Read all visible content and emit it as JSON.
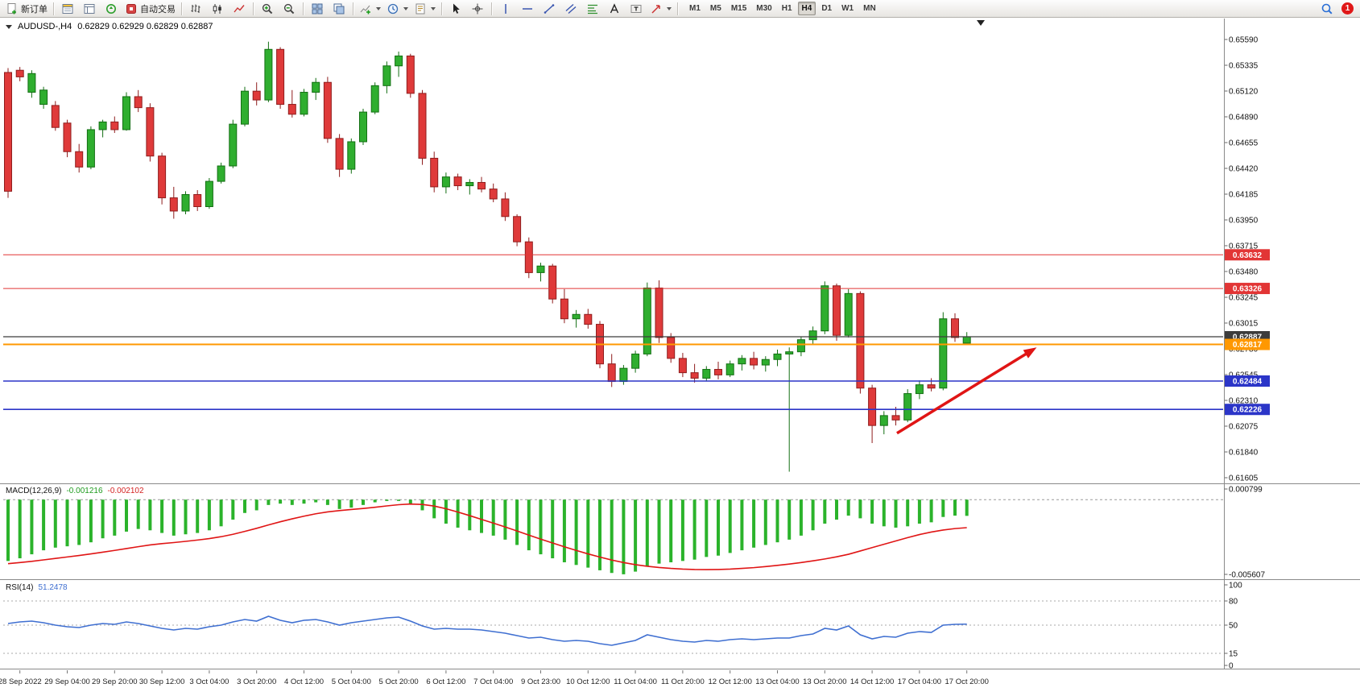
{
  "toolbar": {
    "new_order_label": "新订单",
    "autotrading_label": "自动交易",
    "timeframes": [
      "M1",
      "M5",
      "M15",
      "M30",
      "H1",
      "H4",
      "D1",
      "W1",
      "MN"
    ],
    "active_timeframe": "H4",
    "notification_count": "1"
  },
  "chart": {
    "symbol_period": "AUDUSD-,H4",
    "ohlc": "0.62829 0.62929 0.62829 0.62887"
  },
  "indicators": {
    "macd_label": "MACD(12,26,9)",
    "macd_value": "-0.001216",
    "macd_signal_value": "-0.002102",
    "rsi_label": "RSI(14)",
    "rsi_value": "51.2478"
  },
  "chart_data": {
    "type": "candlestick",
    "symbol": "AUDUSD-",
    "period": "H4",
    "current_bar": {
      "open": 0.62829,
      "high": 0.62929,
      "low": 0.62829,
      "close": 0.62887
    },
    "y_axis_labels": [
      "0.65590",
      "0.65335",
      "0.65120",
      "0.64890",
      "0.64655",
      "0.64420",
      "0.64185",
      "0.63950",
      "0.63715",
      "0.63480",
      "0.63245",
      "0.63015",
      "0.62780",
      "0.62545",
      "0.62310",
      "0.62075",
      "0.61840",
      "0.61605"
    ],
    "x_axis_labels": [
      "28 Sep 2022",
      "29 Sep 04:00",
      "29 Sep 20:00",
      "30 Sep 12:00",
      "3 Oct 04:00",
      "3 Oct 20:00",
      "4 Oct 12:00",
      "5 Oct 04:00",
      "5 Oct 20:00",
      "6 Oct 12:00",
      "7 Oct 04:00",
      "9 Oct 23:00",
      "10 Oct 12:00",
      "11 Oct 04:00",
      "11 Oct 20:00",
      "12 Oct 12:00",
      "13 Oct 04:00",
      "13 Oct 20:00",
      "14 Oct 12:00",
      "17 Oct 04:00",
      "17 Oct 20:00"
    ],
    "colors": {
      "up_fill": "#2fae2f",
      "up_stroke": "#136f13",
      "down_fill": "#df3a3a",
      "down_stroke": "#8f1d1d"
    },
    "candles": [
      [
        0.6529,
        0.6533,
        0.6415,
        0.6421
      ],
      [
        0.6531,
        0.6534,
        0.6521,
        0.6525
      ],
      [
        0.6511,
        0.6531,
        0.6506,
        0.6528
      ],
      [
        0.65,
        0.6516,
        0.6496,
        0.6513
      ],
      [
        0.6499,
        0.6503,
        0.6476,
        0.6479
      ],
      [
        0.6483,
        0.6486,
        0.6452,
        0.6457
      ],
      [
        0.6457,
        0.6464,
        0.6438,
        0.6443
      ],
      [
        0.6443,
        0.648,
        0.6441,
        0.6477
      ],
      [
        0.6477,
        0.6486,
        0.647,
        0.6484
      ],
      [
        0.6484,
        0.6489,
        0.6474,
        0.6477
      ],
      [
        0.6477,
        0.6511,
        0.6476,
        0.6507
      ],
      [
        0.6507,
        0.6513,
        0.6493,
        0.6497
      ],
      [
        0.6497,
        0.6501,
        0.6448,
        0.6453
      ],
      [
        0.6453,
        0.6456,
        0.6409,
        0.6415
      ],
      [
        0.6415,
        0.6425,
        0.6396,
        0.6403
      ],
      [
        0.6403,
        0.6421,
        0.64,
        0.6418
      ],
      [
        0.6418,
        0.6422,
        0.6403,
        0.6407
      ],
      [
        0.6407,
        0.6433,
        0.6405,
        0.643
      ],
      [
        0.643,
        0.6447,
        0.6428,
        0.6444
      ],
      [
        0.6444,
        0.6486,
        0.6442,
        0.6482
      ],
      [
        0.6482,
        0.6516,
        0.648,
        0.6512
      ],
      [
        0.6512,
        0.652,
        0.6499,
        0.6504
      ],
      [
        0.6504,
        0.6557,
        0.6502,
        0.655
      ],
      [
        0.655,
        0.6552,
        0.6496,
        0.65
      ],
      [
        0.65,
        0.6513,
        0.6488,
        0.6491
      ],
      [
        0.6491,
        0.6514,
        0.6489,
        0.6511
      ],
      [
        0.6511,
        0.6524,
        0.6504,
        0.652
      ],
      [
        0.652,
        0.6525,
        0.6465,
        0.6469
      ],
      [
        0.6469,
        0.6473,
        0.6434,
        0.6441
      ],
      [
        0.6441,
        0.6469,
        0.6437,
        0.6466
      ],
      [
        0.6466,
        0.6496,
        0.6463,
        0.6493
      ],
      [
        0.6493,
        0.652,
        0.6491,
        0.6517
      ],
      [
        0.6517,
        0.6539,
        0.651,
        0.6535
      ],
      [
        0.6535,
        0.6548,
        0.6525,
        0.6544
      ],
      [
        0.6544,
        0.6546,
        0.6506,
        0.651
      ],
      [
        0.651,
        0.6513,
        0.6445,
        0.6451
      ],
      [
        0.6451,
        0.6457,
        0.642,
        0.6425
      ],
      [
        0.6425,
        0.6438,
        0.6419,
        0.6434
      ],
      [
        0.6434,
        0.6437,
        0.6422,
        0.6426
      ],
      [
        0.6426,
        0.6432,
        0.6418,
        0.6429
      ],
      [
        0.6429,
        0.6434,
        0.642,
        0.6423
      ],
      [
        0.6423,
        0.6428,
        0.6411,
        0.6414
      ],
      [
        0.6414,
        0.642,
        0.6394,
        0.6398
      ],
      [
        0.6398,
        0.64,
        0.6371,
        0.6375
      ],
      [
        0.6375,
        0.6379,
        0.6342,
        0.6347
      ],
      [
        0.6347,
        0.6356,
        0.6339,
        0.6353
      ],
      [
        0.6353,
        0.6355,
        0.6319,
        0.6323
      ],
      [
        0.6323,
        0.6332,
        0.6301,
        0.6305
      ],
      [
        0.6305,
        0.6313,
        0.6297,
        0.6309
      ],
      [
        0.6309,
        0.6314,
        0.6296,
        0.63
      ],
      [
        0.63,
        0.6303,
        0.626,
        0.6264
      ],
      [
        0.6264,
        0.6273,
        0.6243,
        0.6248
      ],
      [
        0.6248,
        0.6263,
        0.6245,
        0.626
      ],
      [
        0.626,
        0.6276,
        0.6256,
        0.6273
      ],
      [
        0.6273,
        0.6338,
        0.6271,
        0.6333
      ],
      [
        0.6333,
        0.634,
        0.6283,
        0.6288
      ],
      [
        0.6288,
        0.6292,
        0.6265,
        0.6269
      ],
      [
        0.6269,
        0.6274,
        0.6252,
        0.6256
      ],
      [
        0.6256,
        0.6264,
        0.6247,
        0.6251
      ],
      [
        0.6251,
        0.6262,
        0.6248,
        0.6259
      ],
      [
        0.6259,
        0.6266,
        0.625,
        0.6254
      ],
      [
        0.6254,
        0.6267,
        0.6252,
        0.6264
      ],
      [
        0.6264,
        0.6272,
        0.6258,
        0.6269
      ],
      [
        0.6269,
        0.6275,
        0.6259,
        0.6263
      ],
      [
        0.6263,
        0.6271,
        0.6257,
        0.6268
      ],
      [
        0.6268,
        0.6277,
        0.6262,
        0.6273
      ],
      [
        0.6273,
        0.6279,
        0.6166,
        0.6275
      ],
      [
        0.6275,
        0.6289,
        0.6271,
        0.6286
      ],
      [
        0.6286,
        0.6298,
        0.6281,
        0.6294
      ],
      [
        0.6294,
        0.6339,
        0.6291,
        0.6335
      ],
      [
        0.6335,
        0.6337,
        0.6285,
        0.629
      ],
      [
        0.629,
        0.6332,
        0.6288,
        0.6328
      ],
      [
        0.6328,
        0.633,
        0.6237,
        0.6242
      ],
      [
        0.6242,
        0.6245,
        0.6192,
        0.6208
      ],
      [
        0.6208,
        0.6221,
        0.62,
        0.6217
      ],
      [
        0.6217,
        0.6225,
        0.6208,
        0.6213
      ],
      [
        0.6213,
        0.6241,
        0.6211,
        0.6237
      ],
      [
        0.6237,
        0.6249,
        0.6232,
        0.6245
      ],
      [
        0.6245,
        0.6251,
        0.6239,
        0.6242
      ],
      [
        0.6242,
        0.6311,
        0.624,
        0.6305
      ],
      [
        0.6305,
        0.631,
        0.6284,
        0.6288
      ],
      [
        0.62829,
        0.62929,
        0.62829,
        0.62887
      ]
    ],
    "hlines": [
      {
        "price": 0.63632,
        "label": "0.63632",
        "color": "#e23535",
        "width": 1
      },
      {
        "price": 0.63326,
        "label": "0.63326",
        "color": "#e23535",
        "width": 1
      },
      {
        "price": 0.62887,
        "label": "0.62887",
        "color": "#3c3c3c",
        "width": 1.2
      },
      {
        "price": 0.62817,
        "label": "0.62817",
        "color": "#ff9800",
        "width": 2
      },
      {
        "price": 0.62484,
        "label": "0.62484",
        "color": "#2b35c8",
        "width": 1.6
      },
      {
        "price": 0.62226,
        "label": "0.62226",
        "color": "#2b35c8",
        "width": 1.6
      }
    ],
    "trend_arrow": {
      "from": {
        "bar": 75.1,
        "price": 0.6201
      },
      "to": {
        "bar": 86.9,
        "price": 0.6279
      },
      "color": "#e01515"
    },
    "macd": {
      "scale_top": "0.000799",
      "scale_bottom": "-0.005607",
      "hist_color": "#2bb32b",
      "signal_color": "#e01515",
      "histogram": [
        -0.0046,
        -0.0044,
        -0.0041,
        -0.0038,
        -0.0036,
        -0.0035,
        -0.0034,
        -0.0032,
        -0.0029,
        -0.0027,
        -0.0024,
        -0.0022,
        -0.0023,
        -0.0025,
        -0.0027,
        -0.0026,
        -0.0025,
        -0.0023,
        -0.002,
        -0.0015,
        -0.001,
        -0.0008,
        -0.0004,
        -0.0003,
        -0.0004,
        -0.0003,
        -0.0002,
        -0.0004,
        -0.0007,
        -0.0006,
        -0.0004,
        -0.0002,
        -0.0001,
        -0.0001,
        -0.0003,
        -0.0008,
        -0.0014,
        -0.0018,
        -0.0021,
        -0.0023,
        -0.0025,
        -0.0027,
        -0.003,
        -0.0034,
        -0.0038,
        -0.0041,
        -0.0044,
        -0.0047,
        -0.0049,
        -0.0051,
        -0.0053,
        -0.0055,
        -0.0056,
        -0.0054,
        -0.005,
        -0.0048,
        -0.0047,
        -0.0046,
        -0.0045,
        -0.0043,
        -0.0042,
        -0.004,
        -0.0038,
        -0.0036,
        -0.0034,
        -0.0032,
        -0.003,
        -0.0027,
        -0.0023,
        -0.0018,
        -0.0015,
        -0.0012,
        -0.0014,
        -0.0018,
        -0.002,
        -0.0021,
        -0.002,
        -0.0018,
        -0.0017,
        -0.0013,
        -0.0012,
        -0.001216
      ],
      "signal": [
        -0.0048,
        -0.00472,
        -0.00463,
        -0.00452,
        -0.00441,
        -0.0043,
        -0.00419,
        -0.00407,
        -0.00394,
        -0.00381,
        -0.00367,
        -0.00353,
        -0.0034,
        -0.0033,
        -0.00322,
        -0.00313,
        -0.00303,
        -0.00292,
        -0.00278,
        -0.0026,
        -0.00238,
        -0.00215,
        -0.0019,
        -0.00166,
        -0.00144,
        -0.00124,
        -0.00106,
        -0.00092,
        -0.00082,
        -0.00074,
        -0.00066,
        -0.00057,
        -0.00047,
        -0.00038,
        -0.00033,
        -0.00036,
        -0.00048,
        -0.00068,
        -0.00093,
        -0.0012,
        -0.00148,
        -0.00176,
        -0.00205,
        -0.00235,
        -0.00266,
        -0.00296,
        -0.00325,
        -0.00354,
        -0.00381,
        -0.00407,
        -0.00431,
        -0.00453,
        -0.00472,
        -0.00488,
        -0.005,
        -0.00509,
        -0.00516,
        -0.00521,
        -0.00524,
        -0.00525,
        -0.00524,
        -0.00521,
        -0.00516,
        -0.0051,
        -0.00502,
        -0.00493,
        -0.00483,
        -0.00472,
        -0.00459,
        -0.00445,
        -0.00429,
        -0.0041,
        -0.00385,
        -0.0036,
        -0.00335,
        -0.0031,
        -0.00285,
        -0.00262,
        -0.00243,
        -0.00228,
        -0.00217,
        -0.002102
      ]
    },
    "rsi": {
      "range": [
        0,
        100
      ],
      "levels": [
        80,
        50,
        15
      ],
      "scale_labels": [
        "100",
        "80",
        "50",
        "15",
        "0"
      ],
      "color": "#3f6fd1",
      "values": [
        52,
        54,
        55,
        53,
        50,
        48,
        47,
        50,
        52,
        51,
        54,
        52,
        49,
        46,
        44,
        46,
        45,
        48,
        50,
        54,
        57,
        55,
        61,
        56,
        53,
        56,
        57,
        54,
        50,
        53,
        55,
        57,
        59,
        60,
        55,
        49,
        45,
        46,
        45,
        45,
        44,
        42,
        40,
        37,
        34,
        35,
        32,
        30,
        31,
        30,
        27,
        25,
        28,
        31,
        38,
        35,
        32,
        30,
        29,
        31,
        30,
        32,
        33,
        32,
        33,
        34,
        34,
        37,
        39,
        46,
        44,
        49,
        38,
        33,
        36,
        35,
        40,
        42,
        41,
        50,
        51,
        51.2478
      ]
    }
  }
}
